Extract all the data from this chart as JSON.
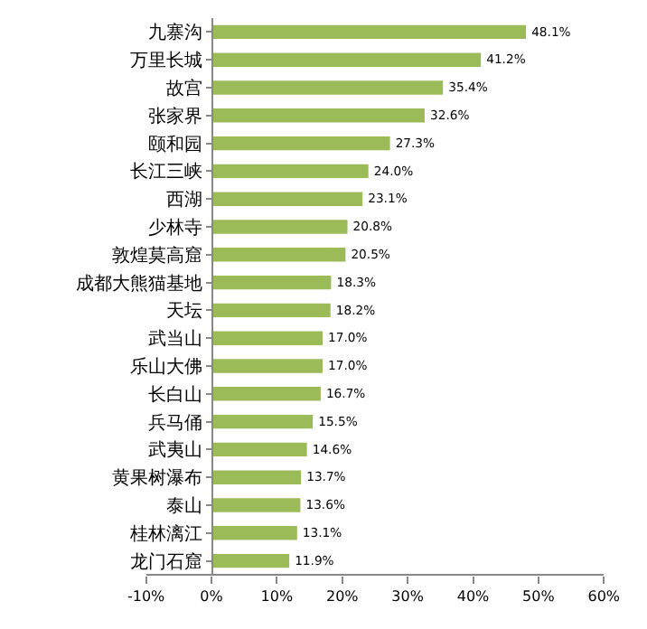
{
  "chart_data": {
    "type": "bar",
    "orientation": "horizontal",
    "categories": [
      "九寨沟",
      "万里长城",
      "故宫",
      "张家界",
      "颐和园",
      "长江三峡",
      "西湖",
      "少林寺",
      "敦煌莫高窟",
      "成都大熊猫基地",
      "天坛",
      "武当山",
      "乐山大佛",
      "长白山",
      "兵马俑",
      "武夷山",
      "黄果树瀑布",
      "泰山",
      "桂林漓江",
      "龙门石窟"
    ],
    "values": [
      48.1,
      41.2,
      35.4,
      32.6,
      27.3,
      24.0,
      23.1,
      20.8,
      20.5,
      18.3,
      18.2,
      17.0,
      17.0,
      16.7,
      15.5,
      14.6,
      13.7,
      13.6,
      13.1,
      11.9
    ],
    "value_labels": [
      "48.1%",
      "41.2%",
      "35.4%",
      "32.6%",
      "27.3%",
      "24.0%",
      "23.1%",
      "20.8%",
      "20.5%",
      "18.3%",
      "18.2%",
      "17.0%",
      "17.0%",
      "16.7%",
      "15.5%",
      "14.6%",
      "13.7%",
      "13.6%",
      "13.1%",
      "11.9%"
    ],
    "color": "#9bbb59",
    "xlim": [
      -10,
      60
    ],
    "xticks": [
      {
        "value": -10,
        "label": "-10%"
      },
      {
        "value": 0,
        "label": "0%"
      },
      {
        "value": 10,
        "label": "10%"
      },
      {
        "value": 20,
        "label": "20%"
      },
      {
        "value": 30,
        "label": "30%"
      },
      {
        "value": 40,
        "label": "40%"
      },
      {
        "value": 50,
        "label": "50%"
      },
      {
        "value": 60,
        "label": "60%"
      }
    ]
  }
}
